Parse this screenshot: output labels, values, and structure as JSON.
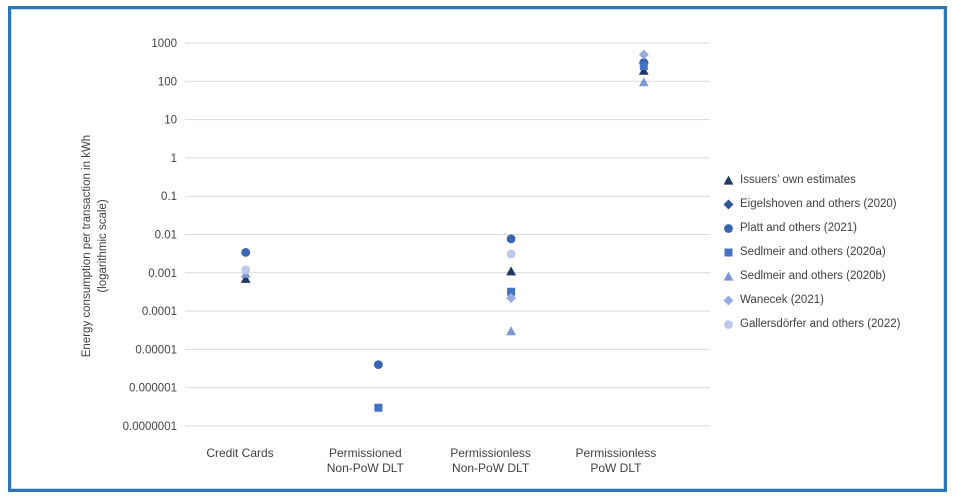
{
  "frame": {
    "border_color": "#2E75B6",
    "background": "#FFFFFF"
  },
  "chart_data": {
    "type": "scatter",
    "title": "",
    "ylabel_line1": "Energy consumption per transaction in kWh",
    "ylabel_line2": "(logarithmic scale)",
    "y_scale": "log",
    "ylim": [
      1e-07,
      1000
    ],
    "y_ticks": [
      "1000",
      "100",
      "10",
      "1",
      "0.1",
      "0.01",
      "0.001",
      "0.0001",
      "0.00001",
      "0.000001",
      "0.0000001"
    ],
    "grid": "horizontal",
    "gridline_color": "#D9D9D9",
    "legend_position": "right",
    "categories": [
      [
        "Credit Cards"
      ],
      [
        "Permissioned",
        "Non-PoW DLT"
      ],
      [
        "Permissionless",
        "Non-PoW DLT"
      ],
      [
        "Permissionless",
        "PoW DLT"
      ]
    ],
    "series": [
      {
        "name": "Issuers’ own estimates",
        "marker": "triangle",
        "color": "#1F3864",
        "points": [
          {
            "category": "Credit Cards",
            "ci": 0,
            "value": 0.0007
          },
          {
            "category": "Permissionless Non-PoW DLT",
            "ci": 2,
            "value": 0.0011
          },
          {
            "category": "Permissionless PoW DLT",
            "ci": 3,
            "value": 190
          }
        ]
      },
      {
        "name": "Eigelshoven and others (2020)",
        "marker": "diamond",
        "color": "#2F5597",
        "points": [
          {
            "category": "Permissionless PoW DLT",
            "ci": 3,
            "value": 300
          }
        ]
      },
      {
        "name": "Platt and others (2021)",
        "marker": "circle",
        "color": "#3A64AD",
        "points": [
          {
            "category": "Credit Cards",
            "ci": 0,
            "value": 0.0034
          },
          {
            "category": "Permissioned Non-PoW DLT",
            "ci": 1,
            "value": 4e-06
          },
          {
            "category": "Permissionless Non-PoW DLT",
            "ci": 2,
            "value": 0.0077
          },
          {
            "category": "Permissionless PoW DLT",
            "ci": 3,
            "value": 310
          }
        ]
      },
      {
        "name": "Sedlmeir and others (2020a)",
        "marker": "square",
        "color": "#4472C4",
        "points": [
          {
            "category": "Permissioned Non-PoW DLT",
            "ci": 1,
            "value": 3e-07
          },
          {
            "category": "Permissionless Non-PoW DLT",
            "ci": 2,
            "value": 0.00032
          },
          {
            "category": "Permissionless PoW DLT",
            "ci": 3,
            "value": 250
          }
        ]
      },
      {
        "name": "Sedlmeir and others (2020b)",
        "marker": "triangle",
        "color": "#7D99D5",
        "points": [
          {
            "category": "Credit Cards",
            "ci": 0,
            "value": 0.00094
          },
          {
            "category": "Permissionless Non-PoW DLT",
            "ci": 2,
            "value": 3e-05
          },
          {
            "category": "Permissionless PoW DLT",
            "ci": 3,
            "value": 95
          }
        ]
      },
      {
        "name": "Wanecek (2021)",
        "marker": "diamond",
        "color": "#98ABDE",
        "points": [
          {
            "category": "Permissionless Non-PoW DLT",
            "ci": 2,
            "value": 0.00022
          },
          {
            "category": "Permissionless PoW DLT",
            "ci": 3,
            "value": 500
          }
        ]
      },
      {
        "name": "Gallersdörfer and others (2022)",
        "marker": "circle",
        "color": "#BDC9E9",
        "points": [
          {
            "category": "Credit Cards",
            "ci": 0,
            "value": 0.0012
          },
          {
            "category": "Permissionless Non-PoW DLT",
            "ci": 2,
            "value": 0.0031
          }
        ]
      }
    ]
  }
}
